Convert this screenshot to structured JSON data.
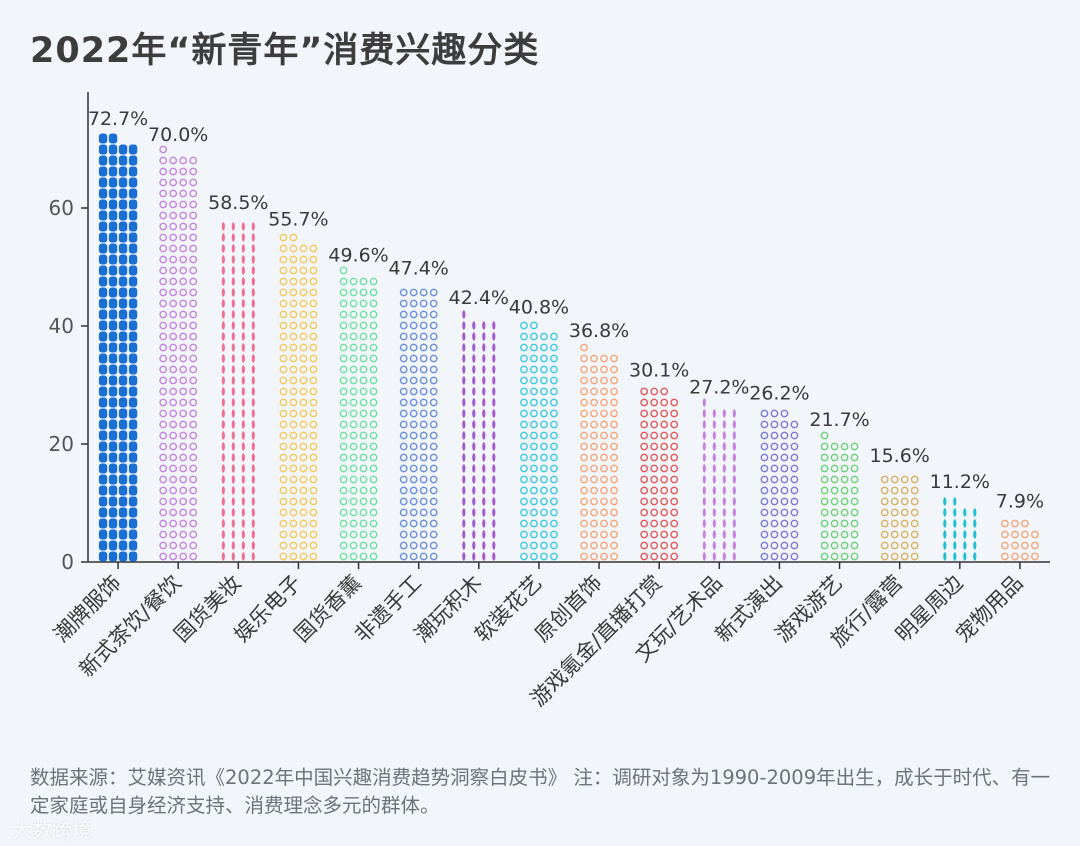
{
  "chart_data": {
    "type": "bar",
    "title": "2022年“新青年”消费兴趣分类",
    "xlabel": "",
    "ylabel": "",
    "ylim": [
      0,
      80
    ],
    "yticks": [
      0,
      20,
      40,
      60
    ],
    "categories": [
      "潮牌服饰",
      "新式茶饮/餐饮",
      "国货美妆",
      "娱乐电子",
      "国货香薰",
      "非遗手工",
      "潮玩积木",
      "软装花艺",
      "原创首饰",
      "游戏氪金/直播打赏",
      "文玩/艺术品",
      "新式演出",
      "游戏游艺",
      "旅行/露营",
      "明星周边",
      "宠物用品"
    ],
    "values": [
      72.7,
      70.0,
      58.5,
      55.7,
      49.6,
      47.4,
      42.4,
      40.8,
      36.8,
      30.1,
      27.2,
      26.2,
      21.7,
      15.6,
      11.2,
      7.9
    ],
    "value_labels": [
      "72.7%",
      "70.0%",
      "58.5%",
      "55.7%",
      "49.6%",
      "47.4%",
      "42.4%",
      "40.8%",
      "36.8%",
      "30.1%",
      "27.2%",
      "26.2%",
      "21.7%",
      "15.6%",
      "11.2%",
      "7.9%"
    ],
    "colors": [
      "#1a6fd4",
      "#c583e0",
      "#ef6f95",
      "#f5c85a",
      "#6fe0a0",
      "#6b8fd8",
      "#a65ad0",
      "#3cc8e0",
      "#f5a57a",
      "#e05858",
      "#c583e0",
      "#7d78d8",
      "#6fd07a",
      "#d8b060",
      "#22c0d0",
      "#f5a57a"
    ],
    "grid": false,
    "legend": "none"
  },
  "source_note": "数据来源：艾媒资讯《2022年中国兴趣消费趋势洞察白皮书》 注：调研对象为1990-2009年出生，成长于时代、有一定家庭或自身经济支持、消费理念多元的群体。",
  "watermark": "大数跨境"
}
